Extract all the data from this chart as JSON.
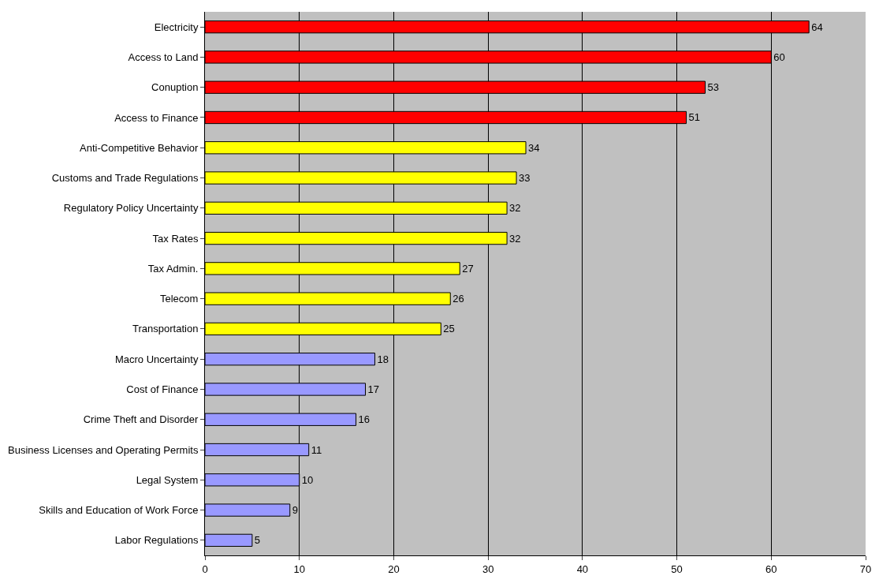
{
  "chart_data": {
    "type": "bar",
    "orientation": "horizontal",
    "categories": [
      "Electricity",
      "Access to Land",
      "Conuption",
      "Access to Finance",
      "Anti-Competitive Behavior",
      "Customs and Trade Regulations",
      "Regulatory Policy Uncertainty",
      "Tax Rates",
      "Tax Admin.",
      "Telecom",
      "Transportation",
      "Macro Uncertainty",
      "Cost of Finance",
      "Crime Theft and Disorder",
      "Business Licenses and Operating Permits",
      "Legal System",
      "Skills and Education of Work Force",
      "Labor Regulations"
    ],
    "values": [
      64,
      60,
      53,
      51,
      34,
      33,
      32,
      32,
      27,
      26,
      25,
      18,
      17,
      16,
      11,
      10,
      9,
      5
    ],
    "colors": [
      "#ff0000",
      "#ff0000",
      "#ff0000",
      "#ff0000",
      "#ffff00",
      "#ffff00",
      "#ffff00",
      "#ffff00",
      "#ffff00",
      "#ffff00",
      "#ffff00",
      "#9999ff",
      "#9999ff",
      "#9999ff",
      "#9999ff",
      "#9999ff",
      "#9999ff",
      "#9999ff"
    ],
    "xlim": [
      0,
      70
    ],
    "xticks": [
      0,
      10,
      20,
      30,
      40,
      50,
      60,
      70
    ],
    "grid": "x",
    "data_labels": true,
    "legend": false
  }
}
